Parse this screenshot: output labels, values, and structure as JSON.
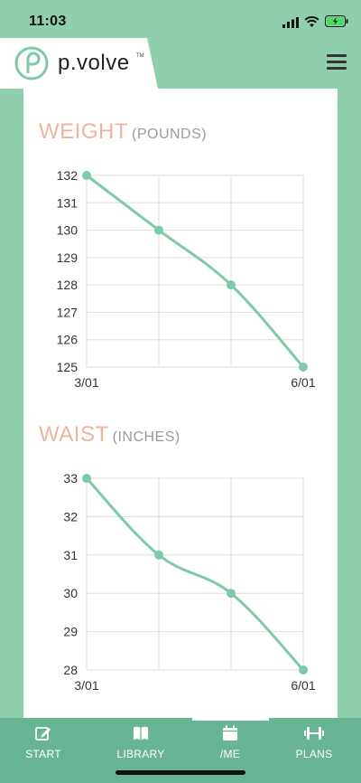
{
  "status_bar": {
    "time": "11:03"
  },
  "header": {
    "logo_text": "p.volve",
    "logo_tm": "TM"
  },
  "colors": {
    "accent": "#7fcaa6",
    "title": "#ecb59f",
    "tab_bar": "#67b595"
  },
  "chart_data": [
    {
      "type": "line",
      "title": "WEIGHT",
      "subtitle": "(POUNDS)",
      "x": [
        "3/01",
        "",
        "",
        "6/01"
      ],
      "x_tick_labels": [
        "3/01",
        "6/01"
      ],
      "series": [
        {
          "values": [
            132,
            130,
            128,
            125
          ]
        }
      ],
      "y_ticks": [
        132,
        131,
        130,
        129,
        128,
        127,
        126,
        125
      ],
      "ylim": [
        125,
        132
      ],
      "grid": true
    },
    {
      "type": "line",
      "title": "WAIST",
      "subtitle": "(INCHES)",
      "x": [
        "3/01",
        "",
        "",
        "6/01"
      ],
      "x_tick_labels": [
        "3/01",
        "6/01"
      ],
      "series": [
        {
          "values": [
            33,
            31,
            30,
            28
          ]
        }
      ],
      "y_ticks": [
        33,
        32,
        31,
        30,
        29,
        28
      ],
      "ylim": [
        28,
        33
      ],
      "grid": true
    }
  ],
  "tabs": [
    {
      "label": "START",
      "icon": "edit-icon"
    },
    {
      "label": "LIBRARY",
      "icon": "book-icon"
    },
    {
      "label": "/ME",
      "icon": "calendar-icon",
      "active": true
    },
    {
      "label": "PLANS",
      "icon": "dumbbell-icon"
    }
  ]
}
